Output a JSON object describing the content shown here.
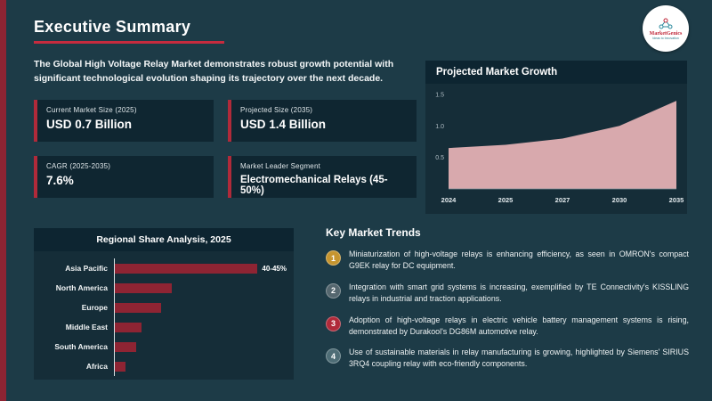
{
  "slide": {
    "title": "Executive Summary",
    "intro": "The Global High Voltage Relay Market demonstrates robust growth potential with significant technological evolution shaping its trajectory over the next decade."
  },
  "logo": {
    "brand": "MarketGenics",
    "tagline": "Ideas to Innovation"
  },
  "stats": [
    {
      "label": "Current Market Size (2025)",
      "value": "USD 0.7 Billion"
    },
    {
      "label": "Projected Size (2035)",
      "value": "USD 1.4 Billion"
    },
    {
      "label": "CAGR (2025-2035)",
      "value": "7.6%"
    },
    {
      "label": "Market Leader Segment",
      "value": "Electromechanical Relays (45-50%)"
    }
  ],
  "chart_data": [
    {
      "type": "area",
      "title": "Projected Market Growth",
      "x": [
        "2024",
        "2025",
        "2027",
        "2030",
        "2035"
      ],
      "values": [
        0.65,
        0.7,
        0.8,
        1.0,
        1.4
      ],
      "ylim": [
        0,
        1.5
      ],
      "yticks": [
        0.5,
        1.0,
        1.5
      ],
      "fill_color": "#d8a9ad",
      "axis_color": "#aebcc3",
      "legend": "none",
      "grid": "off"
    },
    {
      "type": "bar",
      "orientation": "horizontal",
      "title": "Regional Share Analysis, 2025",
      "categories": [
        "Asia Pacific",
        "North America",
        "Europe",
        "Middle East",
        "South America",
        "Africa"
      ],
      "values": [
        42.5,
        16,
        13,
        7.5,
        6,
        3
      ],
      "xlim": [
        0,
        48
      ],
      "data_labels": [
        "40-45%",
        "",
        "",
        "",
        "",
        ""
      ],
      "bar_color": "#8e2433",
      "legend": "none",
      "grid": "off"
    }
  ],
  "trends": {
    "title": "Key Market Trends",
    "items": [
      {
        "num": "1",
        "color": "#c6952f",
        "text": "Miniaturization of high-voltage relays is enhancing efficiency, as seen in OMRON's compact G9EK relay for DC equipment."
      },
      {
        "num": "2",
        "color": "#55676f",
        "text": "Integration with smart grid systems is increasing, exemplified by TE Connectivity's KISSLING relays in industrial and traction applications."
      },
      {
        "num": "3",
        "color": "#b02a3a",
        "text": "Adoption of high-voltage relays in electric vehicle battery management systems is rising, demonstrated by Durakool's DG86M automotive relay."
      },
      {
        "num": "4",
        "color": "#4e6d76",
        "text": "Use of sustainable materials in relay manufacturing is growing, highlighted by Siemens' SIRIUS 3RQ4 coupling relay with eco-friendly components."
      }
    ]
  },
  "accent": {
    "red": "#b02a3a"
  }
}
